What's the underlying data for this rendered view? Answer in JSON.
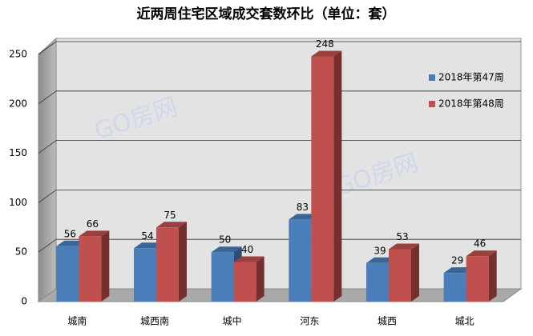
{
  "chart_data": {
    "type": "bar3d",
    "title": "近两周住宅区域成交套数环比（单位：套）",
    "categories": [
      "城南",
      "城西南",
      "城中",
      "河东",
      "城西",
      "城北"
    ],
    "series": [
      {
        "name": "2018年第47周",
        "color": "#4a7ebb",
        "values": [
          56,
          54,
          50,
          83,
          39,
          29
        ]
      },
      {
        "name": "2018年第48周",
        "color": "#c0504d",
        "values": [
          66,
          75,
          40,
          248,
          53,
          46
        ]
      }
    ],
    "ylim": [
      0,
      250
    ],
    "yticks": [
      0,
      50,
      100,
      150,
      200,
      250
    ],
    "grid": true,
    "legend": "right",
    "watermark": "GO房网"
  }
}
